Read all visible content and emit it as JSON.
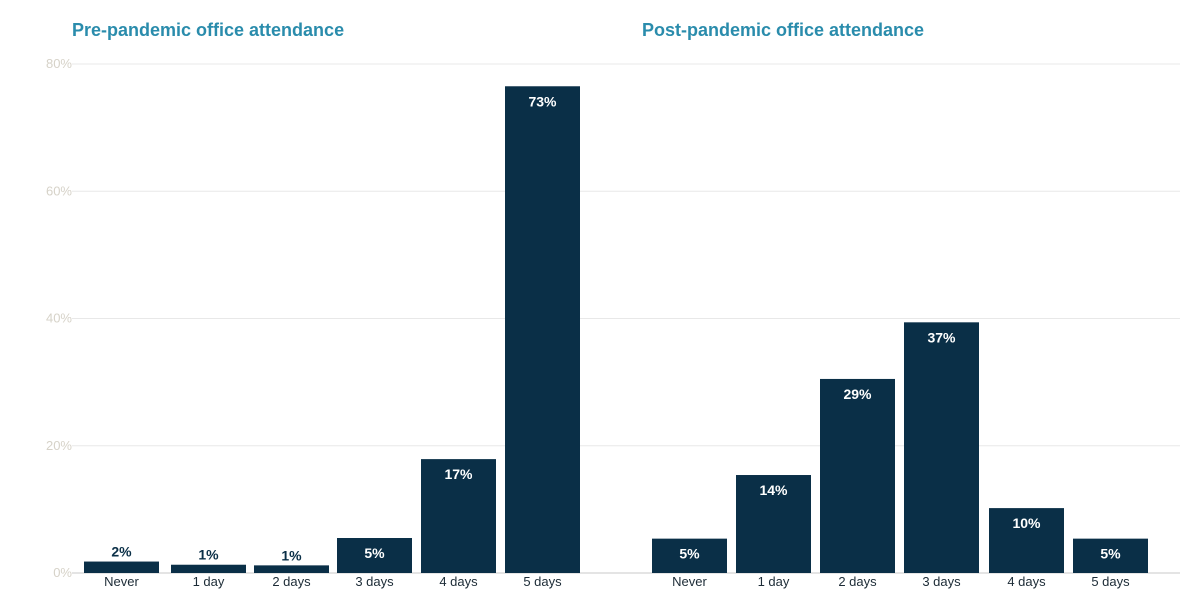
{
  "chart_data": [
    {
      "type": "bar",
      "title": "Pre-pandemic office attendance",
      "categories": [
        "Never",
        "1 day",
        "2 days",
        "3 days",
        "4 days",
        "5 days"
      ],
      "values": [
        2,
        1,
        1,
        5,
        17,
        73
      ],
      "value_labels": [
        "2%",
        "1%",
        "1%",
        "5%",
        "17%",
        "73%"
      ],
      "bar_heights_pct": [
        1.8,
        1.3,
        1.2,
        5.5,
        17.9,
        76.5
      ],
      "ylim": [
        0,
        80
      ],
      "yticks": [
        "0%",
        "20%",
        "40%",
        "60%",
        "80%"
      ],
      "xlabel": "",
      "ylabel": "",
      "grid": true,
      "bar_color": "#0a2f47",
      "label_color": "#ffffff"
    },
    {
      "type": "bar",
      "title": "Post-pandemic office attendance",
      "categories": [
        "Never",
        "1 day",
        "2 days",
        "3 days",
        "4 days",
        "5 days"
      ],
      "values": [
        5,
        14,
        29,
        37,
        10,
        5
      ],
      "value_labels": [
        "5%",
        "14%",
        "29%",
        "37%",
        "10%",
        "5%"
      ],
      "bar_heights_pct": [
        5.4,
        15.4,
        30.5,
        39.4,
        10.2,
        5.4
      ],
      "ylim": [
        0,
        80
      ],
      "yticks": [
        "0%",
        "20%",
        "40%",
        "60%",
        "80%"
      ],
      "xlabel": "",
      "ylabel": "",
      "grid": true,
      "bar_color": "#0a2f47",
      "label_color": "#ffffff"
    }
  ],
  "colors": {
    "title": "#2a8cac",
    "bar": "#0a2f47",
    "bar_label_on_dark": "#ffffff",
    "bar_label_on_light": "#0a2f47",
    "tick_label": "#d6d2c8",
    "category_label": "#1c2b36",
    "grid": "#e8e8e8"
  }
}
